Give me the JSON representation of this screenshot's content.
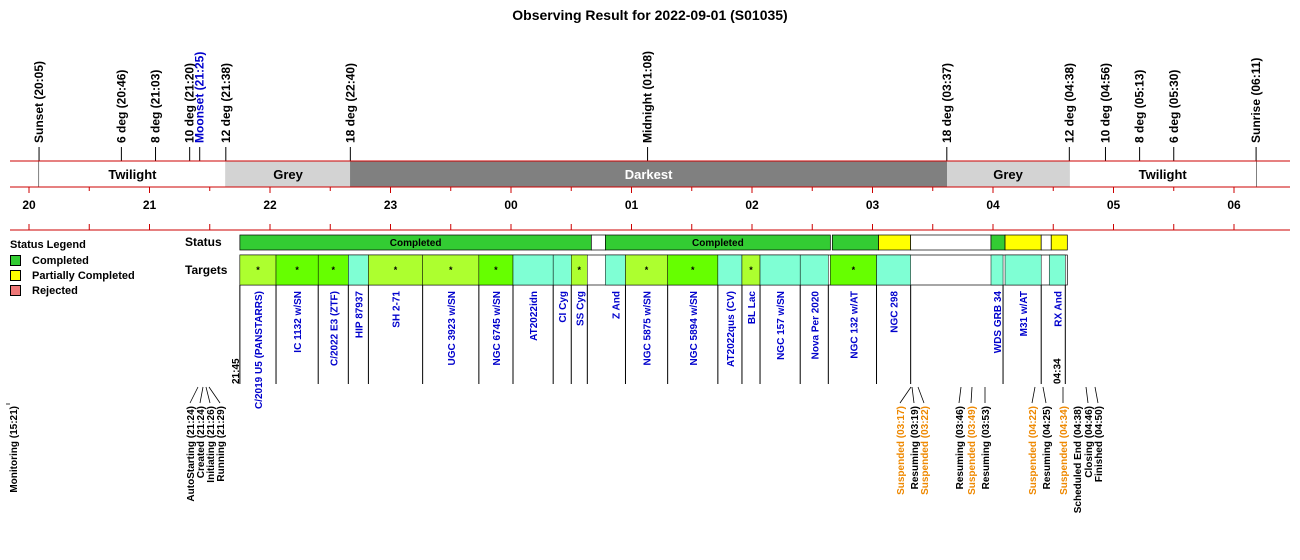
{
  "title": "Observing Result for 2022-09-01 (S01035)",
  "colors": {
    "red": "#cc0000",
    "blue": "#0000cc",
    "orange": "#ee8800",
    "grey_band": "#d3d3d3",
    "dark_band": "#808080",
    "completed": "#33cc33",
    "partial": "#ffff00",
    "rejected": "#ee7777",
    "target_light": "#adff2f",
    "target_green": "#66ff00",
    "target_cyan": "#7fffd4"
  },
  "legend": {
    "title": "Status Legend",
    "items": [
      {
        "label": "Completed",
        "color": "#33cc33"
      },
      {
        "label": "Partially Completed",
        "color": "#ffff00"
      },
      {
        "label": "Rejected",
        "color": "#ee7777"
      }
    ]
  },
  "row_labels": {
    "status": "Status",
    "targets": "Targets"
  },
  "chart_data": {
    "type": "timeline",
    "title": "Observing Result for 2022-09-01 (S01035)",
    "time_axis": {
      "start": "19:50",
      "end": "06:25",
      "hour_labels": [
        "20",
        "21",
        "22",
        "23",
        "00",
        "01",
        "02",
        "03",
        "04",
        "05",
        "06"
      ]
    },
    "sun_events": [
      {
        "label": "Sunset (20:05)",
        "time": "20:05",
        "color": "black"
      },
      {
        "label": "6 deg (20:46)",
        "time": "20:46",
        "color": "black"
      },
      {
        "label": "8 deg (21:03)",
        "time": "21:03",
        "color": "black"
      },
      {
        "label": "10 deg (21:20)",
        "time": "21:20",
        "color": "black"
      },
      {
        "label": "Moonset (21:25)",
        "time": "21:25",
        "color": "blue"
      },
      {
        "label": "12 deg (21:38)",
        "time": "21:38",
        "color": "black"
      },
      {
        "label": "18 deg (22:40)",
        "time": "22:40",
        "color": "black"
      },
      {
        "label": "Midnight (01:08)",
        "time": "01:08",
        "color": "black"
      },
      {
        "label": "18 deg (03:37)",
        "time": "03:37",
        "color": "black"
      },
      {
        "label": "12 deg (04:38)",
        "time": "04:38",
        "color": "black"
      },
      {
        "label": "10 deg (04:56)",
        "time": "04:56",
        "color": "black"
      },
      {
        "label": "8 deg (05:13)",
        "time": "05:13",
        "color": "black"
      },
      {
        "label": "6 deg (05:30)",
        "time": "05:30",
        "color": "black"
      },
      {
        "label": "Sunrise (06:11)",
        "time": "06:11",
        "color": "black"
      }
    ],
    "sky_bands": [
      {
        "label": "Twilight",
        "start": "20:05",
        "end": "21:38",
        "shade": "white"
      },
      {
        "label": "Grey",
        "start": "21:38",
        "end": "22:40",
        "shade": "grey"
      },
      {
        "label": "Darkest",
        "start": "22:40",
        "end": "03:37",
        "shade": "dark"
      },
      {
        "label": "Grey",
        "start": "03:37",
        "end": "04:38",
        "shade": "grey"
      },
      {
        "label": "Twilight",
        "start": "04:38",
        "end": "06:11",
        "shade": "white"
      }
    ],
    "status_segments": [
      {
        "start": "21:45",
        "end": "00:40",
        "status": "completed",
        "label": "Completed"
      },
      {
        "start": "00:40",
        "end": "00:47",
        "status": "gap",
        "label": ""
      },
      {
        "start": "00:47",
        "end": "02:39",
        "status": "completed",
        "label": "Completed"
      },
      {
        "start": "02:40",
        "end": "03:03",
        "status": "completed",
        "label": ""
      },
      {
        "start": "03:03",
        "end": "03:19",
        "status": "partial",
        "label": ""
      },
      {
        "start": "03:19",
        "end": "03:59",
        "status": "gap",
        "label": ""
      },
      {
        "start": "03:59",
        "end": "04:06",
        "status": "completed",
        "label": ""
      },
      {
        "start": "04:06",
        "end": "04:24",
        "status": "partial",
        "label": ""
      },
      {
        "start": "04:24",
        "end": "04:29",
        "status": "gap",
        "label": ""
      },
      {
        "start": "04:29",
        "end": "04:37",
        "status": "partial",
        "label": ""
      }
    ],
    "targets": [
      {
        "name": "C/2019 U5 (PANSTARRS)",
        "start": "21:45",
        "end": "22:03",
        "fill": "light",
        "star": true
      },
      {
        "name": "IC 1132 w/SN",
        "start": "22:03",
        "end": "22:24",
        "fill": "green",
        "star": true
      },
      {
        "name": "C/2022 E3 (ZTF)",
        "start": "22:24",
        "end": "22:39",
        "fill": "green",
        "star": true
      },
      {
        "name": "HIP 87937",
        "start": "22:39",
        "end": "22:49",
        "fill": "cyan",
        "star": false
      },
      {
        "name": "SH 2-71",
        "start": "22:49",
        "end": "23:16",
        "fill": "light",
        "star": true
      },
      {
        "name": "UGC 3923 w/SN",
        "start": "23:16",
        "end": "23:44",
        "fill": "light",
        "star": true
      },
      {
        "name": "NGC 6745 w/SN",
        "start": "23:44",
        "end": "24:01",
        "fill": "green",
        "star": true
      },
      {
        "name": "AT2022idn",
        "start": "24:01",
        "end": "24:21",
        "fill": "cyan",
        "star": false
      },
      {
        "name": "CI Cyg",
        "start": "24:21",
        "end": "24:30",
        "fill": "cyan",
        "star": false
      },
      {
        "name": "SS Cyg",
        "start": "24:30",
        "end": "24:38",
        "fill": "light",
        "star": true
      },
      {
        "name": "Z And",
        "start": "24:47",
        "end": "24:57",
        "fill": "cyan",
        "star": false
      },
      {
        "name": "NGC 5875 w/SN",
        "start": "24:57",
        "end": "25:18",
        "fill": "light",
        "star": true
      },
      {
        "name": "NGC 5894 w/SN",
        "start": "25:18",
        "end": "25:43",
        "fill": "green",
        "star": true
      },
      {
        "name": "AT2022qus (CV)",
        "start": "25:43",
        "end": "25:55",
        "fill": "cyan",
        "star": false
      },
      {
        "name": "BL Lac",
        "start": "25:55",
        "end": "26:04",
        "fill": "light",
        "star": true
      },
      {
        "name": "NGC 157 w/SN",
        "start": "26:04",
        "end": "26:24",
        "fill": "cyan",
        "star": false
      },
      {
        "name": "Nova Per 2020",
        "start": "26:24",
        "end": "26:38",
        "fill": "cyan",
        "star": false
      },
      {
        "name": "NGC 132 w/AT",
        "start": "26:39",
        "end": "27:02",
        "fill": "green",
        "star": true
      },
      {
        "name": "NGC 298",
        "start": "27:02",
        "end": "27:19",
        "fill": "cyan",
        "star": false
      },
      {
        "name": "WDS GRB 34",
        "start": "27:59",
        "end": "28:05",
        "fill": "cyan",
        "star": false
      },
      {
        "name": "M31 w/AT",
        "start": "28:06",
        "end": "28:24",
        "fill": "cyan",
        "star": false
      },
      {
        "name": "RX And",
        "start": "28:28",
        "end": "28:36",
        "fill": "cyan",
        "star": false
      }
    ],
    "time_marks": [
      {
        "label": "21:45",
        "time": "21:45"
      },
      {
        "label": "04:34",
        "time": "04:34"
      }
    ],
    "events": [
      {
        "label": "Monitoring (15:21)",
        "color": "black"
      },
      {
        "label": "AutoStarting (21:24)",
        "color": "black"
      },
      {
        "label": "Created (21:24)",
        "color": "black"
      },
      {
        "label": "Initiating (21:26)",
        "color": "black"
      },
      {
        "label": "Running (21:29)",
        "color": "black"
      },
      {
        "label": "Suspended (03:17)",
        "color": "orange"
      },
      {
        "label": "Resuming (03:19)",
        "color": "black"
      },
      {
        "label": "Suspended (03:22)",
        "color": "orange"
      },
      {
        "label": "Resuming (03:46)",
        "color": "black"
      },
      {
        "label": "Suspended (03:49)",
        "color": "orange"
      },
      {
        "label": "Resuming (03:53)",
        "color": "black"
      },
      {
        "label": "Suspended (04:22)",
        "color": "orange"
      },
      {
        "label": "Resuming (04:25)",
        "color": "black"
      },
      {
        "label": "Suspended (04:34)",
        "color": "orange"
      },
      {
        "label": "Scheduled End (04:38)",
        "color": "black"
      },
      {
        "label": "Closing (04:46)",
        "color": "black"
      },
      {
        "label": "Finished (04:50)",
        "color": "black"
      }
    ]
  }
}
